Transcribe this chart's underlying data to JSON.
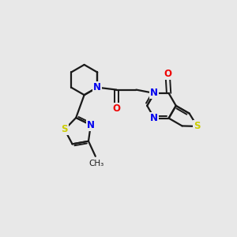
{
  "background_color": "#e8e8e8",
  "bond_color": "#1a1a1a",
  "atom_colors": {
    "N": "#0000ee",
    "O": "#ee0000",
    "S": "#cccc00",
    "C": "#1a1a1a"
  },
  "figsize": [
    3.0,
    3.0
  ],
  "dpi": 100
}
